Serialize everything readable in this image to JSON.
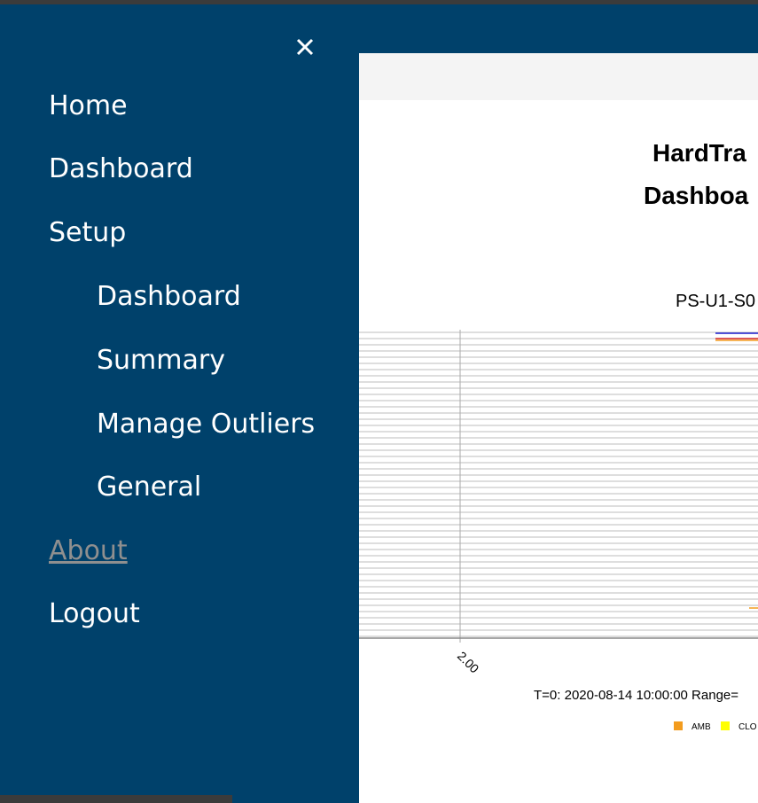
{
  "menu": {
    "items": [
      {
        "label": "Home",
        "level": 0
      },
      {
        "label": "Dashboard",
        "level": 0
      },
      {
        "label": "Setup",
        "level": 0
      },
      {
        "label": "Dashboard",
        "level": 1
      },
      {
        "label": "Summary",
        "level": 1
      },
      {
        "label": "Manage Outliers",
        "level": 1
      },
      {
        "label": "General",
        "level": 1
      },
      {
        "label": "About",
        "level": 0,
        "hovered": true
      },
      {
        "label": "Logout",
        "level": 0
      }
    ]
  },
  "panel": {
    "title_lines": [
      "HardTra",
      "Dashboa"
    ],
    "chart_title": "PS-U1-S0",
    "x_tick": "2.00",
    "caption": "T=0: 2020-08-14 10:00:00 Range=",
    "legend": [
      {
        "name": "AMB",
        "color": "#f39c1e"
      },
      {
        "name": "CLO",
        "color": "#ffff00"
      }
    ]
  }
}
